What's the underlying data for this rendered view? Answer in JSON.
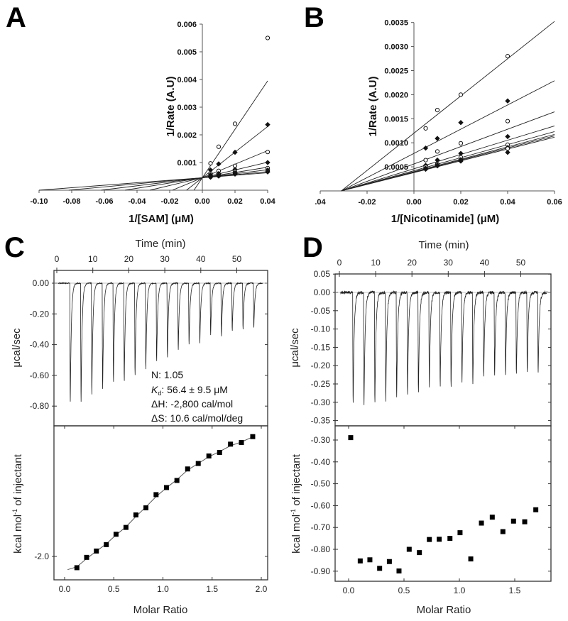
{
  "chart_data": [
    {
      "id": "A",
      "type": "scatter",
      "panel_label": "A",
      "xlabel": "1/[SAM] (μM)",
      "ylabel": "1/Rate (A.U)",
      "xlim": [
        -0.1,
        0.04
      ],
      "ylim": [
        0,
        0.006
      ],
      "xticks": [
        "-0.10",
        "-0.08",
        "-0.06",
        "-0.04",
        "-0.02",
        "0.00",
        "0.02",
        "0.04"
      ],
      "xtick_values": [
        -0.1,
        -0.08,
        -0.06,
        -0.04,
        -0.02,
        0.0,
        0.02,
        0.04
      ],
      "yticks": [
        "0.001",
        "0.002",
        "0.003",
        "0.004",
        "0.005",
        "0.006"
      ],
      "ytick_values": [
        0.001,
        0.002,
        0.003,
        0.004,
        0.005,
        0.006
      ],
      "x": [
        0.005,
        0.01,
        0.02,
        0.04
      ],
      "series": [
        {
          "marker": "open",
          "values": [
            0.00097,
            0.00157,
            0.0024,
            0.0055
          ]
        },
        {
          "marker": "filled",
          "values": [
            0.00073,
            0.00095,
            0.00137,
            0.00237
          ]
        },
        {
          "marker": "open",
          "values": [
            0.0006,
            0.0007,
            0.00088,
            0.00138
          ]
        },
        {
          "marker": "filled",
          "values": [
            0.00055,
            0.0006,
            0.00075,
            0.001
          ]
        },
        {
          "marker": "open",
          "values": [
            0.0005,
            0.00057,
            0.00068,
            0.0008
          ]
        },
        {
          "marker": "filled",
          "values": [
            0.0005,
            0.00055,
            0.00063,
            0.00073
          ]
        },
        {
          "marker": "open",
          "values": [
            0.00048,
            0.00052,
            0.0006,
            0.00068
          ]
        },
        {
          "marker": "filled",
          "values": [
            0.00047,
            0.00051,
            0.00058,
            0.00066
          ]
        }
      ],
      "fit_lines": [
        {
          "slope": 0.0875,
          "intercept": 0.00045
        },
        {
          "slope": 0.04625,
          "intercept": 0.00045
        },
        {
          "slope": 0.0245,
          "intercept": 0.00045
        },
        {
          "slope": 0.014,
          "intercept": 0.00045
        },
        {
          "slope": 0.0095,
          "intercept": 0.00045
        },
        {
          "slope": 0.00725,
          "intercept": 0.00045
        },
        {
          "slope": 0.0055,
          "intercept": 0.00045
        },
        {
          "slope": 0.0045,
          "intercept": 0.00045
        }
      ]
    },
    {
      "id": "B",
      "type": "scatter",
      "panel_label": "B",
      "xlabel": "1/[Nicotinamide] (μM)",
      "ylabel": "1/Rate (A.U)",
      "xlim": [
        -0.04,
        0.06
      ],
      "ylim": [
        0,
        0.0035
      ],
      "xticks": [
        ".04",
        "-0.02",
        "0.00",
        "0.02",
        "0.04",
        "0.06"
      ],
      "xtick_values": [
        -0.04,
        -0.02,
        0.0,
        0.02,
        0.04,
        0.06
      ],
      "yticks": [
        "0.0005",
        "0.0010",
        "0.0015",
        "0.0020",
        "0.0025",
        "0.0030",
        "0.0035"
      ],
      "ytick_values": [
        0.0005,
        0.001,
        0.0015,
        0.002,
        0.0025,
        0.003,
        0.0035
      ],
      "x": [
        0.005,
        0.01,
        0.02,
        0.04
      ],
      "series": [
        {
          "marker": "open",
          "values": [
            0.0013,
            0.00168,
            0.002,
            0.0028
          ]
        },
        {
          "marker": "filled",
          "values": [
            0.00089,
            0.00109,
            0.00142,
            0.00187
          ]
        },
        {
          "marker": "open",
          "values": [
            0.00064,
            0.00082,
            0.00099,
            0.00145
          ]
        },
        {
          "marker": "filled",
          "values": [
            0.00053,
            0.00064,
            0.00078,
            0.00113
          ]
        },
        {
          "marker": "open",
          "values": [
            0.0005,
            0.00056,
            0.0007,
            0.00096
          ]
        },
        {
          "marker": "filled",
          "values": [
            0.00047,
            0.00054,
            0.00065,
            0.0009
          ]
        },
        {
          "marker": "open",
          "values": [
            0.00046,
            0.00053,
            0.00063,
            0.00088
          ]
        },
        {
          "marker": "filled",
          "values": [
            0.00045,
            0.00052,
            0.00062,
            0.0008
          ]
        }
      ],
      "fit_lines": [
        {
          "slope": 0.0387,
          "intercept": 0.0012
        },
        {
          "slope": 0.02516,
          "intercept": 0.00078
        },
        {
          "slope": 0.01806,
          "intercept": 0.00056
        },
        {
          "slope": 0.01484,
          "intercept": 0.00046
        },
        {
          "slope": 0.01355,
          "intercept": 0.00042
        },
        {
          "slope": 0.0129,
          "intercept": 0.0004
        },
        {
          "slope": 0.01258,
          "intercept": 0.00039
        },
        {
          "slope": 0.01226,
          "intercept": 0.00038
        }
      ]
    },
    {
      "id": "C",
      "type": "line",
      "panel_label": "C",
      "raw": {
        "xlabel": "Time (min)",
        "ylabel": "μcal/sec",
        "xlim": [
          0,
          58
        ],
        "ylim": [
          -0.92,
          0.08
        ],
        "xticks": [
          "0",
          "10",
          "20",
          "30",
          "40",
          "50"
        ],
        "xtick_values": [
          0,
          10,
          20,
          30,
          40,
          50
        ],
        "yticks": [
          "0.00",
          "-0.20",
          "-0.40",
          "-0.60",
          "-0.80"
        ],
        "ytick_values": [
          0,
          -0.2,
          -0.4,
          -0.6,
          -0.8
        ],
        "injection_times": [
          3.6,
          6.6,
          9.6,
          12.6,
          15.6,
          18.6,
          21.6,
          24.6,
          27.6,
          30.6,
          33.6,
          36.6,
          39.6,
          42.6,
          45.6,
          48.6,
          51.6,
          54.6
        ],
        "peak_values": [
          -0.85,
          -0.85,
          -0.8,
          -0.76,
          -0.71,
          -0.7,
          -0.66,
          -0.62,
          -0.56,
          -0.53,
          -0.48,
          -0.44,
          -0.43,
          -0.37,
          -0.38,
          -0.34,
          -0.33,
          -0.32
        ]
      },
      "annotations": [
        "N: 1.05",
        "56.4 ± 9.5 μM",
        "ΔH: -2,800 cal/mol",
        "ΔS: 10.6 cal/mol/deg"
      ],
      "kd_label": {
        "main": "K",
        "sub": "d",
        "sep": ": "
      },
      "isotherm": {
        "xlabel": "Molar Ratio",
        "ylabel": "kcal mol",
        "ylabel_sup": "-1",
        "ylabel_rest": " of injectant",
        "xlim": [
          -0.1,
          2.05
        ],
        "ylim": [
          -2.31,
          -0.2
        ],
        "xticks": [
          "0.0",
          "0.5",
          "1.0",
          "1.5",
          "2.0"
        ],
        "xtick_values": [
          0,
          0.5,
          1.0,
          1.5,
          2.0
        ],
        "yticks": [
          "-2.0"
        ],
        "ytick_values": [
          -2.0
        ],
        "x": [
          0.125,
          0.224,
          0.323,
          0.424,
          0.523,
          0.624,
          0.725,
          0.827,
          0.93,
          1.036,
          1.142,
          1.251,
          1.359,
          1.467,
          1.576,
          1.687,
          1.798,
          1.913
        ],
        "y": [
          -2.153,
          -2.013,
          -1.927,
          -1.84,
          -1.7,
          -1.607,
          -1.438,
          -1.342,
          -1.163,
          -1.067,
          -0.971,
          -0.815,
          -0.741,
          -0.639,
          -0.591,
          -0.479,
          -0.457,
          -0.377
        ],
        "fit_x": [
          0.03,
          0.125,
          0.224,
          0.323,
          0.424,
          0.523,
          0.624,
          0.725,
          0.827,
          0.93,
          1.036,
          1.142,
          1.251,
          1.359,
          1.467,
          1.576,
          1.687,
          1.798,
          1.913
        ],
        "fit_y": [
          -2.18,
          -2.14,
          -2.03,
          -1.93,
          -1.83,
          -1.71,
          -1.6,
          -1.46,
          -1.33,
          -1.19,
          -1.07,
          -0.96,
          -0.83,
          -0.74,
          -0.65,
          -0.58,
          -0.5,
          -0.45,
          -0.38
        ]
      }
    },
    {
      "id": "D",
      "type": "line",
      "panel_label": "D",
      "raw": {
        "xlabel": "Time (min)",
        "ylabel": "μcal/sec",
        "xlim": [
          0,
          58
        ],
        "ylim": [
          -0.36,
          0.05
        ],
        "xticks": [
          "0",
          "10",
          "20",
          "30",
          "40",
          "50"
        ],
        "xtick_values": [
          0,
          10,
          20,
          30,
          40,
          50
        ],
        "yticks": [
          "0.05",
          "0.00",
          "-0.05",
          "-0.10",
          "-0.15",
          "-0.20",
          "-0.25",
          "-0.30",
          "-0.35"
        ],
        "ytick_values": [
          0.05,
          0,
          -0.05,
          -0.1,
          -0.15,
          -0.2,
          -0.25,
          -0.3,
          -0.35
        ],
        "injection_times": [
          3.65,
          6.65,
          9.65,
          12.65,
          15.65,
          18.65,
          21.65,
          24.65,
          27.65,
          30.65,
          33.65,
          36.65,
          39.65,
          42.65,
          45.65,
          48.65,
          51.65,
          54.65
        ],
        "peak_values": [
          -0.335,
          -0.337,
          -0.335,
          -0.327,
          -0.317,
          -0.305,
          -0.3,
          -0.287,
          -0.28,
          -0.282,
          -0.27,
          -0.278,
          -0.255,
          -0.252,
          -0.253,
          -0.248,
          -0.242,
          -0.245
        ]
      },
      "isotherm": {
        "xlabel": "Molar Ratio",
        "ylabel": "kcal mol",
        "ylabel_sup": "-1",
        "ylabel_rest": " of injectant",
        "xlim": [
          -0.1,
          1.8
        ],
        "ylim": [
          -0.95,
          -0.25
        ],
        "xticks": [
          "0.0",
          "0.5",
          "1.0",
          "1.5"
        ],
        "xtick_values": [
          0,
          0.5,
          1.0,
          1.5
        ],
        "yticks": [
          "-0.30",
          "-0.40",
          "-0.50",
          "-0.60",
          "-0.70",
          "-0.80",
          "-0.90"
        ],
        "ytick_values": [
          -0.3,
          -0.4,
          -0.5,
          -0.6,
          -0.7,
          -0.8,
          -0.9
        ],
        "x": [
          0.019,
          0.105,
          0.192,
          0.28,
          0.368,
          0.455,
          0.547,
          0.639,
          0.729,
          0.818,
          0.915,
          1.006,
          1.103,
          1.199,
          1.297,
          1.393,
          1.489,
          1.59,
          1.69
        ],
        "y": [
          -0.289,
          -0.853,
          -0.848,
          -0.887,
          -0.856,
          -0.899,
          -0.8,
          -0.815,
          -0.755,
          -0.754,
          -0.75,
          -0.724,
          -0.844,
          -0.68,
          -0.653,
          -0.719,
          -0.671,
          -0.674,
          -0.619
        ]
      }
    }
  ]
}
